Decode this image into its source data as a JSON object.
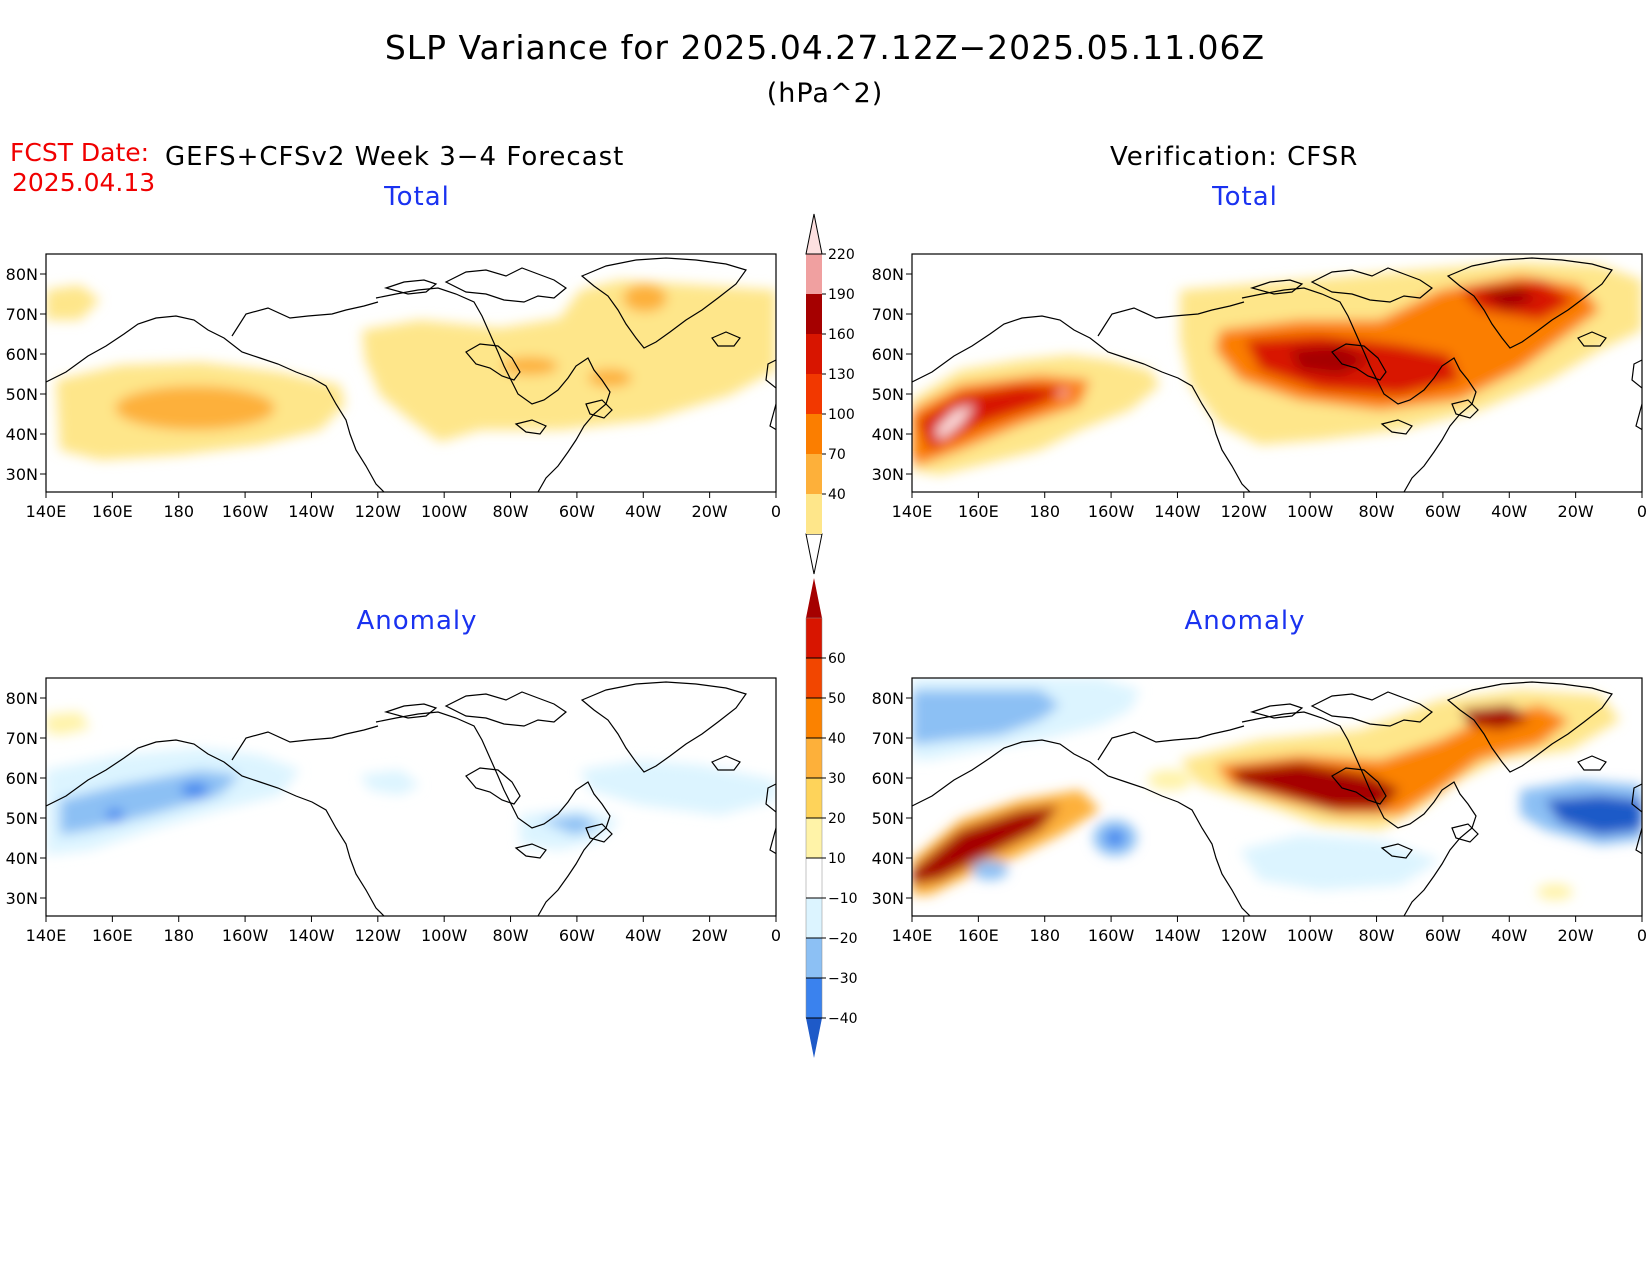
{
  "title": "SLP Variance for 2025.04.27.12Z−2025.05.11.06Z",
  "units": "(hPa^2)",
  "fcst_label": "FCST Date:",
  "fcst_date": "2025.04.13",
  "model_label": "GEFS+CFSv2 Week 3−4 Forecast",
  "verification_label": "Verification: CFSR",
  "panel_titles": {
    "total": "Total",
    "anomaly": "Anomaly"
  },
  "axes": {
    "lat_labels": [
      "80N",
      "70N",
      "60N",
      "50N",
      "40N",
      "30N"
    ],
    "lon_labels": [
      "140E",
      "160E",
      "180",
      "160W",
      "140W",
      "120W",
      "100W",
      "80W",
      "60W",
      "40W",
      "20W",
      "0"
    ]
  },
  "colorbars": {
    "total": {
      "levels": [
        "40",
        "70",
        "100",
        "130",
        "160",
        "190",
        "220"
      ],
      "colors": [
        "#fee68a",
        "#fdb03a",
        "#fb7e00",
        "#f23800",
        "#d81500",
        "#a50000",
        "#f0a0a0",
        "#fde0e0"
      ]
    },
    "anomaly": {
      "levels": [
        "−40",
        "−30",
        "−20",
        "−10",
        "10",
        "20",
        "30",
        "40",
        "50",
        "60"
      ],
      "colors": [
        "#1e5ac8",
        "#3a82ee",
        "#8cc0f4",
        "#dcf4ff",
        "#ffffff",
        "#fff3a8",
        "#fed35a",
        "#fdb03a",
        "#fb8200",
        "#f24600",
        "#d81500",
        "#a50000"
      ]
    }
  },
  "chart_data": [
    {
      "type": "heatmap",
      "panel": "Forecast Total",
      "features": [
        {
          "name": "North Pacific maximum",
          "lon": "180",
          "lat": "45N",
          "level": "70-100"
        },
        {
          "name": "Greenland maximum",
          "lon": "40W",
          "lat": "72N",
          "level": "70-100"
        },
        {
          "name": "Hudson Bay maximum",
          "lon": "78W",
          "lat": "55N",
          "level": "70-100"
        },
        {
          "name": "Background",
          "level": "40-70"
        }
      ]
    },
    {
      "type": "heatmap",
      "panel": "Verification Total",
      "features": [
        {
          "name": "NW Pacific maximum",
          "lon": "150E",
          "lat": "42N",
          "level": ">220"
        },
        {
          "name": "Canada maximum",
          "lon": "95W",
          "lat": "58N",
          "level": "160-190"
        },
        {
          "name": "Greenland maximum",
          "lon": "45W",
          "lat": "75N",
          "level": "130-160"
        }
      ]
    },
    {
      "type": "heatmap",
      "panel": "Forecast Anomaly",
      "features": [
        {
          "name": "Bering/Aleutian minimum",
          "lon": "170E",
          "lat": "52N",
          "level": "-30 to -20"
        },
        {
          "name": "Newfoundland minimum",
          "lon": "60W",
          "lat": "47N",
          "level": "-20 to -10"
        }
      ]
    },
    {
      "type": "heatmap",
      "panel": "Verification Anomaly",
      "features": [
        {
          "name": "NW Pacific maximum",
          "lon": "155E",
          "lat": "45N",
          "level": ">60"
        },
        {
          "name": "Canada maximum",
          "lon": "100W",
          "lat": "60N",
          "level": ">60"
        },
        {
          "name": "North Atlantic minimum",
          "lon": "20W",
          "lat": "50N",
          "level": "-40 to -30"
        },
        {
          "name": "NE Pacific minimum",
          "lon": "160W",
          "lat": "43N",
          "level": "-40 to -30"
        }
      ]
    }
  ]
}
